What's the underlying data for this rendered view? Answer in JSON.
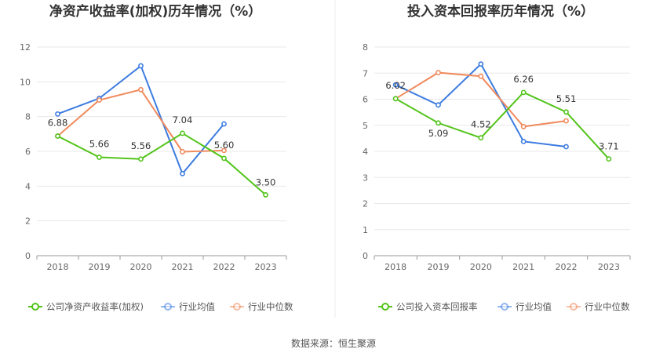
{
  "source_label": "数据来源：恒生聚源",
  "chart_data": [
    {
      "type": "line",
      "title": "净资产收益率(加权)历年情况（%）",
      "categories": [
        "2018",
        "2019",
        "2020",
        "2021",
        "2022",
        "2023"
      ],
      "ylim": [
        0,
        12
      ],
      "yticks": [
        0,
        2,
        4,
        6,
        8,
        10,
        12
      ],
      "grid": true,
      "legend_position": "bottom",
      "series": [
        {
          "name": "公司净资产收益率(加权)",
          "color": "#52c41a",
          "values": [
            6.88,
            5.66,
            5.56,
            7.04,
            5.6,
            3.5
          ],
          "labels": [
            "6.88",
            "5.66",
            "5.56",
            "7.04",
            "5.60",
            "3.50"
          ]
        },
        {
          "name": "行业均值",
          "color": "#3d7ce0",
          "values": [
            8.15,
            9.05,
            10.92,
            4.72,
            7.58,
            null
          ]
        },
        {
          "name": "行业中位数",
          "color": "#f08a5d",
          "values": [
            6.88,
            8.95,
            9.55,
            5.98,
            6.05,
            null
          ]
        }
      ]
    },
    {
      "type": "line",
      "title": "投入资本回报率历年情况（%）",
      "categories": [
        "2018",
        "2019",
        "2020",
        "2021",
        "2022",
        "2023"
      ],
      "ylim": [
        0,
        8
      ],
      "yticks": [
        0,
        1,
        2,
        3,
        4,
        5,
        6,
        7,
        8
      ],
      "grid": true,
      "legend_position": "bottom",
      "series": [
        {
          "name": "公司投入资本回报率",
          "color": "#52c41a",
          "values": [
            6.02,
            5.09,
            4.52,
            6.26,
            5.51,
            3.71
          ],
          "labels": [
            "6.02",
            "5.09",
            "4.52",
            "6.26",
            "5.51",
            "3.71"
          ]
        },
        {
          "name": "行业均值",
          "color": "#3d7ce0",
          "values": [
            6.55,
            5.78,
            7.35,
            4.38,
            4.18,
            null
          ]
        },
        {
          "name": "行业中位数",
          "color": "#f08a5d",
          "values": [
            6.02,
            7.02,
            6.88,
            4.95,
            5.17,
            null
          ]
        }
      ]
    }
  ]
}
